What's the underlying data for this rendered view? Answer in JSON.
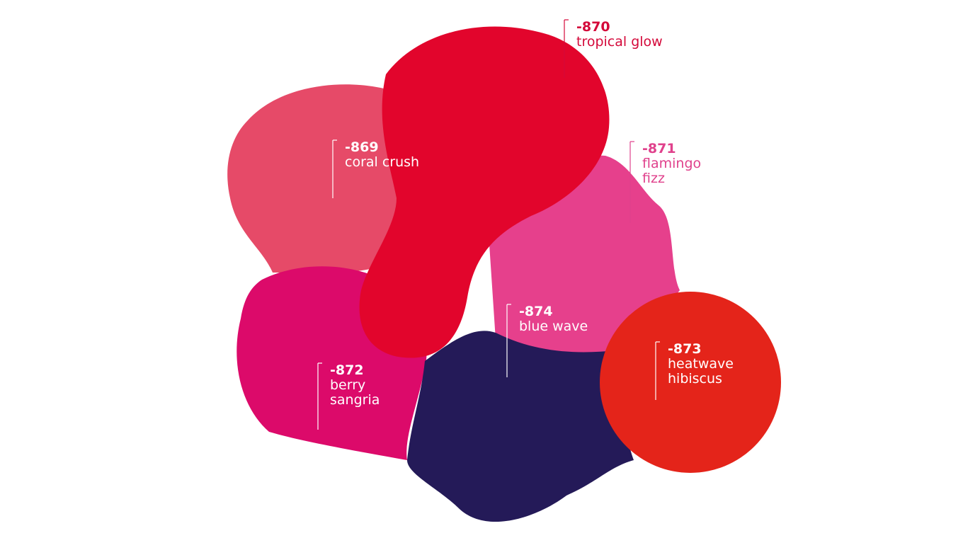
{
  "swatches": [
    {
      "code": "-869",
      "name_lines": [
        "coral crush"
      ]
    },
    {
      "code": "-870",
      "name_lines": [
        "tropical glow"
      ]
    },
    {
      "code": "-871",
      "name_lines": [
        "flamingo",
        "fizz"
      ]
    },
    {
      "code": "-874",
      "name_lines": [
        "blue wave"
      ]
    },
    {
      "code": "-872",
      "name_lines": [
        "berry",
        "sangria"
      ]
    },
    {
      "code": "-873",
      "name_lines": [
        "heatwave",
        "hibiscus"
      ]
    }
  ]
}
